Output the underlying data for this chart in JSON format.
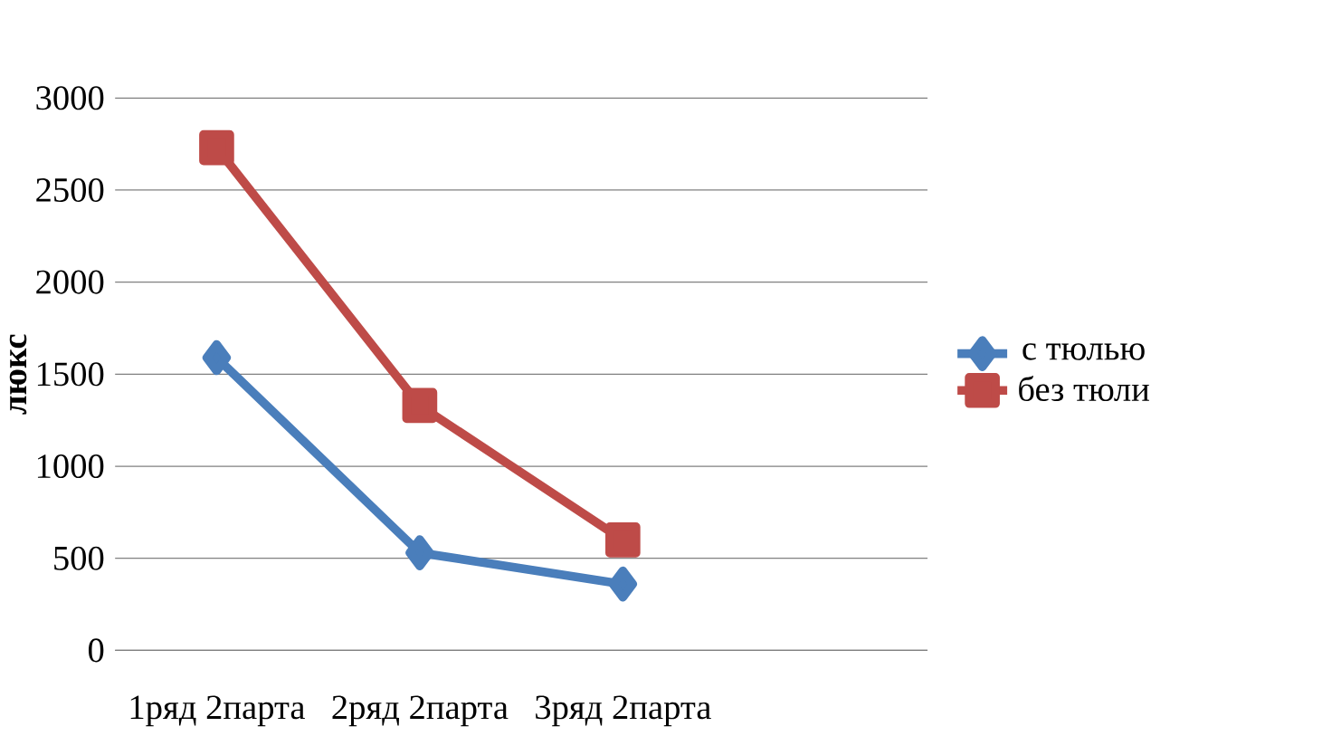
{
  "chart_data": {
    "type": "line",
    "ylabel": "**люкс**",
    "categories": [
      "1ряд 2парта",
      "2ряд 2парта",
      "3ряд 2парта",
      null
    ],
    "series": [
      {
        "name": "с тюлью",
        "color": "#4a7ebb",
        "values": [
          1590,
          530,
          360,
          null
        ]
      },
      {
        "name": "без тюли",
        "color": "#be4b48",
        "values": [
          2730,
          1330,
          600,
          null
        ],
        "marker": "square"
      }
    ],
    "ylim": [
      0,
      3000
    ],
    "yticks": [
      0,
      500,
      1000,
      1500,
      2000,
      2500,
      3000
    ],
    "grid": "y",
    "legend": "right",
    "marker": "diamond",
    "line_style": "solid"
  }
}
